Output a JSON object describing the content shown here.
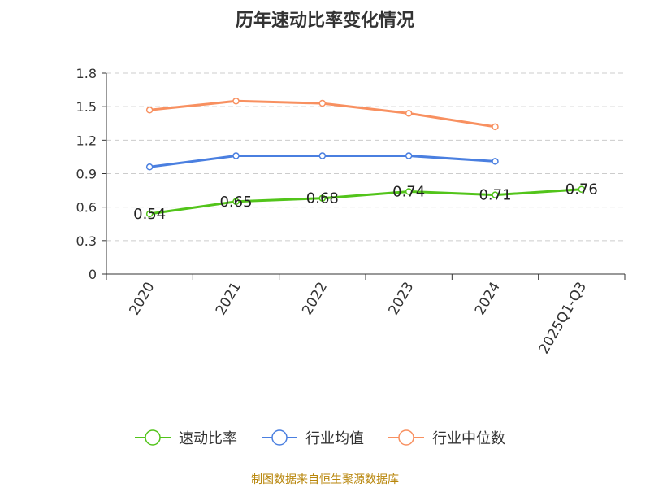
{
  "chart_data": {
    "type": "line",
    "title": "历年速动比率变化情况",
    "categories": [
      "2020",
      "2021",
      "2022",
      "2023",
      "2024",
      "2025Q1-Q3"
    ],
    "ylim": [
      0,
      1.8
    ],
    "yticks": [
      "0",
      "0.3",
      "0.6",
      "0.9",
      "1.2",
      "1.5",
      "1.8"
    ],
    "grid": true,
    "series": [
      {
        "name": "速动比率",
        "color": "#52c41a",
        "values": [
          0.54,
          0.65,
          0.68,
          0.74,
          0.71,
          0.76
        ],
        "labels": [
          "0.54",
          "0.65",
          "0.68",
          "0.74",
          "0.71",
          "0.76"
        ]
      },
      {
        "name": "行业均值",
        "color": "#4a7fe0",
        "values": [
          0.96,
          1.06,
          1.06,
          1.06,
          1.01,
          null
        ]
      },
      {
        "name": "行业中位数",
        "color": "#f89060",
        "values": [
          1.47,
          1.55,
          1.53,
          1.44,
          1.32,
          null
        ]
      }
    ],
    "legend_position": "bottom",
    "source": "制图数据来自恒生聚源数据库"
  }
}
